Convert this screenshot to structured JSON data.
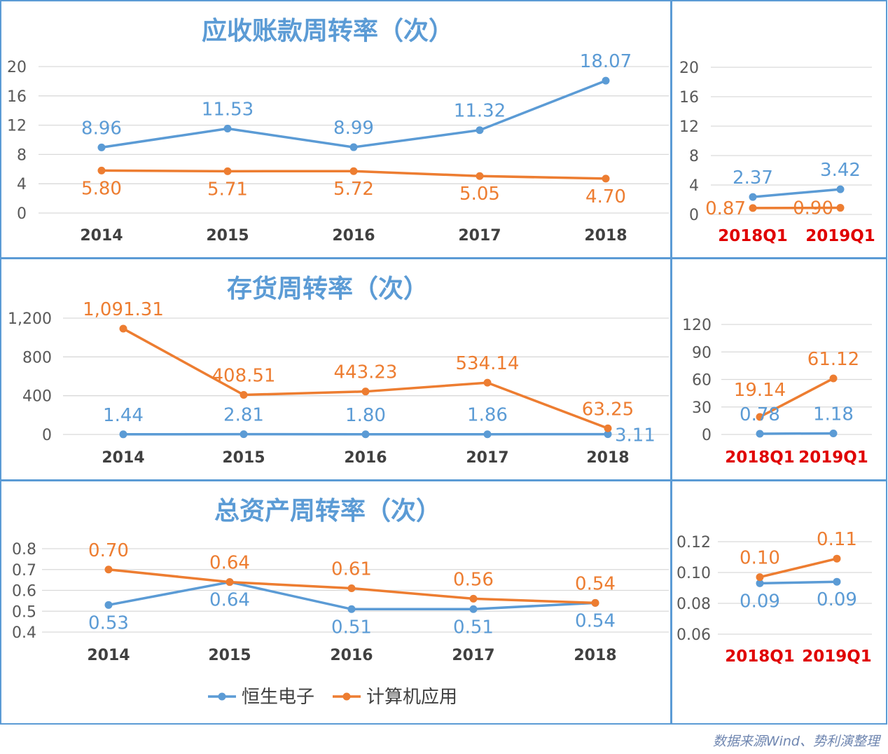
{
  "colors": {
    "series1": "#5b9bd5",
    "series2": "#ed7d31",
    "border": "#5b9bd5",
    "quarter_label": "#e00000",
    "watermark": "#c9a24a"
  },
  "legend": [
    "恒生电子",
    "计算机应用"
  ],
  "source": "数据来源Wind、势利演整理",
  "watermark": "势利演",
  "chart_data": [
    {
      "type": "line",
      "title": "应收账款周转率（次）",
      "categories": [
        "2014",
        "2015",
        "2016",
        "2017",
        "2018"
      ],
      "yticks": [
        "0",
        "4",
        "8",
        "12",
        "16",
        "20"
      ],
      "ylim": [
        0,
        20
      ],
      "series": [
        {
          "name": "恒生电子",
          "values": [
            8.96,
            11.53,
            8.99,
            11.32,
            18.07
          ],
          "labels": [
            "8.96",
            "11.53",
            "8.99",
            "11.32",
            "18.07"
          ],
          "label_pos": [
            "above",
            "above",
            "above",
            "above",
            "above"
          ]
        },
        {
          "name": "计算机应用",
          "values": [
            5.8,
            5.71,
            5.72,
            5.05,
            4.7
          ],
          "labels": [
            "5.80",
            "5.71",
            "5.72",
            "5.05",
            "4.70"
          ],
          "label_pos": [
            "below",
            "below",
            "below",
            "below",
            "below"
          ]
        }
      ]
    },
    {
      "type": "line",
      "title": "",
      "categories": [
        "2018Q1",
        "2019Q1"
      ],
      "yticks": [
        "0",
        "4",
        "8",
        "12",
        "16",
        "20"
      ],
      "ylim": [
        0,
        20
      ],
      "series": [
        {
          "name": "恒生电子",
          "values": [
            2.37,
            3.42
          ],
          "labels": [
            "2.37",
            "3.42"
          ],
          "label_pos": [
            "above",
            "above"
          ]
        },
        {
          "name": "计算机应用",
          "values": [
            0.87,
            0.9
          ],
          "labels": [
            "0.87",
            "0.90"
          ],
          "label_pos": [
            "below",
            "below"
          ]
        }
      ]
    },
    {
      "type": "line",
      "title": "存货周转率（次）",
      "categories": [
        "2014",
        "2015",
        "2016",
        "2017",
        "2018"
      ],
      "yticks": [
        "0",
        "400",
        "800",
        "1,200"
      ],
      "ylim": [
        0,
        1200
      ],
      "series": [
        {
          "name": "恒生电子",
          "values": [
            1.44,
            2.81,
            1.8,
            1.86,
            3.11
          ],
          "labels": [
            "1.44",
            "2.81",
            "1.80",
            "1.86",
            "3.11"
          ],
          "label_pos": [
            "above",
            "above",
            "above",
            "above",
            "below"
          ]
        },
        {
          "name": "计算机应用",
          "values": [
            1091.31,
            408.51,
            443.23,
            534.14,
            63.25
          ],
          "labels": [
            "1,091.31",
            "408.51",
            "443.23",
            "534.14",
            "63.25"
          ],
          "label_pos": [
            "above",
            "above",
            "above",
            "above",
            "above"
          ]
        }
      ]
    },
    {
      "type": "line",
      "title": "",
      "categories": [
        "2018Q1",
        "2019Q1"
      ],
      "yticks": [
        "0",
        "30",
        "60",
        "90",
        "120"
      ],
      "ylim": [
        0,
        120
      ],
      "series": [
        {
          "name": "恒生电子",
          "values": [
            0.78,
            1.18
          ],
          "labels": [
            "0.78",
            "1.18"
          ],
          "label_pos": [
            "above",
            "above"
          ]
        },
        {
          "name": "计算机应用",
          "values": [
            19.14,
            61.12
          ],
          "labels": [
            "19.14",
            "61.12"
          ],
          "label_pos": [
            "above",
            "above"
          ]
        }
      ]
    },
    {
      "type": "line",
      "title": "总资产周转率（次）",
      "categories": [
        "2014",
        "2015",
        "2016",
        "2017",
        "2018"
      ],
      "yticks": [
        "0.4",
        "0.5",
        "0.6",
        "0.7",
        "0.8"
      ],
      "ylim": [
        0.4,
        0.8
      ],
      "series": [
        {
          "name": "恒生电子",
          "values": [
            0.53,
            0.64,
            0.51,
            0.51,
            0.54
          ],
          "labels": [
            "0.53",
            "0.64",
            "0.51",
            "0.51",
            "0.54"
          ],
          "label_pos": [
            "below",
            "below",
            "below",
            "below",
            "below"
          ]
        },
        {
          "name": "计算机应用",
          "values": [
            0.7,
            0.64,
            0.61,
            0.56,
            0.54
          ],
          "labels": [
            "0.70",
            "0.64",
            "0.61",
            "0.56",
            "0.54"
          ],
          "label_pos": [
            "above",
            "above",
            "above",
            "above",
            "above"
          ]
        }
      ]
    },
    {
      "type": "line",
      "title": "",
      "categories": [
        "2018Q1",
        "2019Q1"
      ],
      "yticks": [
        "0.06",
        "0.08",
        "0.10",
        "0.12"
      ],
      "ylim": [
        0.06,
        0.12
      ],
      "series": [
        {
          "name": "恒生电子",
          "values": [
            0.093,
            0.094
          ],
          "labels": [
            "0.09",
            "0.09"
          ],
          "label_pos": [
            "below",
            "below"
          ]
        },
        {
          "name": "计算机应用",
          "values": [
            0.097,
            0.109
          ],
          "labels": [
            "0.10",
            "0.11"
          ],
          "label_pos": [
            "above",
            "above"
          ]
        }
      ]
    }
  ]
}
